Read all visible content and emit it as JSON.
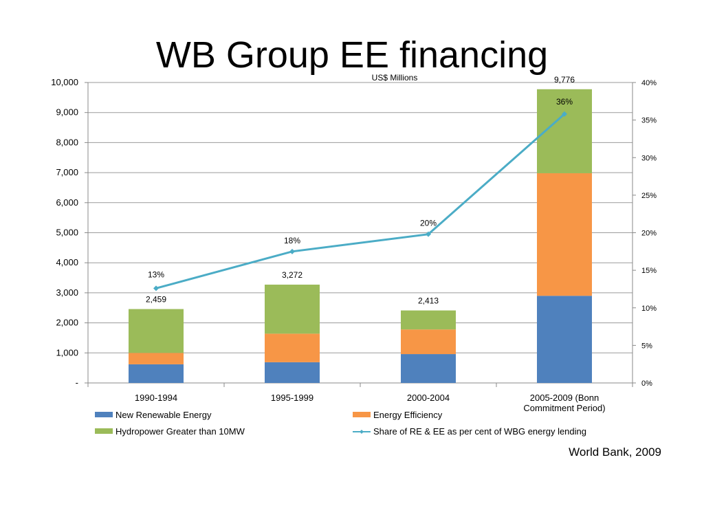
{
  "slide": {
    "title": "WB Group EE financing",
    "source": "World Bank, 2009"
  },
  "chart_data": {
    "type": "bar",
    "stacked": true,
    "unit_label": "US$ Millions",
    "categories": [
      "1990-1994",
      "1995-1999",
      "2000-2004",
      "2005-2009 (Bonn Commitment Period)"
    ],
    "category_lines": [
      [
        "1990-1994"
      ],
      [
        "1995-1999"
      ],
      [
        "2000-2004"
      ],
      [
        "2005-2009 (Bonn",
        "Commitment Period)"
      ]
    ],
    "series": [
      {
        "name": "New Renewable Energy",
        "color": "#4f81bd",
        "values": [
          620,
          690,
          960,
          2900
        ]
      },
      {
        "name": "Energy Efficiency",
        "color": "#f79646",
        "values": [
          380,
          950,
          820,
          4080
        ]
      },
      {
        "name": "Hydropower Greater than 10MW",
        "color": "#9bbb59",
        "values": [
          1459,
          1632,
          633,
          2796
        ]
      }
    ],
    "totals": [
      2459,
      3272,
      2413,
      9776
    ],
    "total_labels": [
      "2,459",
      "3,272",
      "2,413",
      "9,776"
    ],
    "line_series": {
      "name": "Share of RE & EE as per cent of WBG energy lending",
      "color": "#4bacc6",
      "values": [
        12.6,
        17.5,
        19.8,
        35.8
      ],
      "labels": [
        "13%",
        "18%",
        "20%",
        "36%"
      ]
    },
    "y_left": {
      "min": 0,
      "max": 10000,
      "ticks": [
        0,
        1000,
        2000,
        3000,
        4000,
        5000,
        6000,
        7000,
        8000,
        9000,
        10000
      ],
      "tick_labels": [
        "-",
        "1,000",
        "2,000",
        "3,000",
        "4,000",
        "5,000",
        "6,000",
        "7,000",
        "8,000",
        "9,000",
        "10,000"
      ]
    },
    "y_right": {
      "min": 0,
      "max": 40,
      "ticks": [
        0,
        5,
        10,
        15,
        20,
        25,
        30,
        35,
        40
      ],
      "tick_labels": [
        "0%",
        "5%",
        "10%",
        "15%",
        "20%",
        "25%",
        "30%",
        "35%",
        "40%"
      ]
    },
    "grid": true,
    "legend": "bottom"
  }
}
